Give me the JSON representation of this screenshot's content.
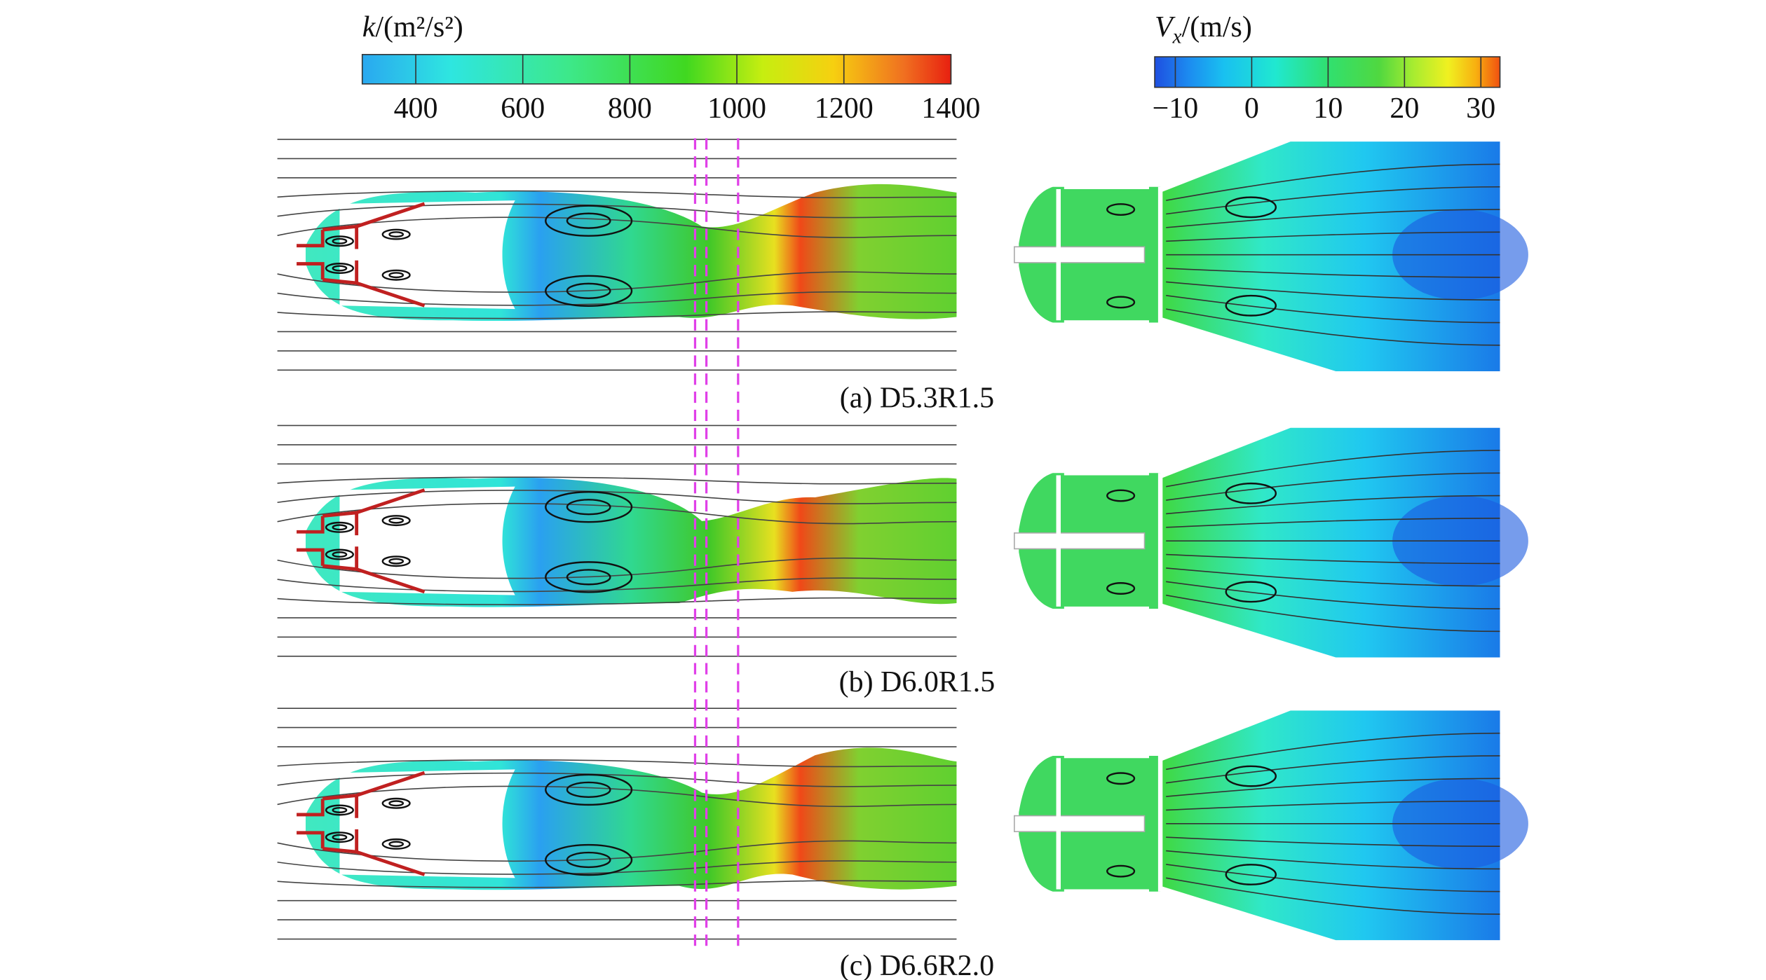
{
  "colorbars": [
    {
      "title": {
        "symbol": "k",
        "unit": "/(m²/s²)"
      },
      "range": [
        300,
        1400
      ],
      "ticks": [
        400,
        600,
        800,
        1000,
        1200,
        1400
      ]
    },
    {
      "title": {
        "symbol": "V",
        "subscript": "x",
        "unit": "/(m/s)"
      },
      "range": [
        -12.7,
        32.5
      ],
      "ticks": [
        {
          "value": -10,
          "label": "−10"
        },
        0,
        10,
        20,
        30
      ]
    }
  ],
  "panels": [
    {
      "caption": "(a) D5.3R1.5"
    },
    {
      "caption": "(b) D6.0R1.5"
    },
    {
      "caption": "(c) D6.6R2.0"
    }
  ]
}
